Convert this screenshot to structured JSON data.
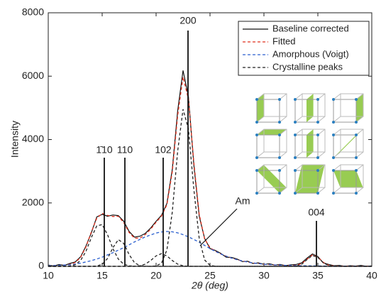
{
  "chart_data": {
    "type": "line",
    "x_label": "2θ (deg)",
    "y_label": "Intensity",
    "xlim": [
      10,
      40
    ],
    "xticks": [
      10,
      15,
      20,
      25,
      30,
      35,
      40
    ],
    "ylim": [
      0,
      8000
    ],
    "yticks": [
      0,
      2000,
      4000,
      6000,
      8000
    ],
    "legend": "upper right",
    "x": [
      10,
      10.5,
      11,
      11.5,
      12,
      12.5,
      13,
      13.5,
      14,
      14.5,
      15,
      15.5,
      16,
      16.5,
      17,
      17.5,
      18,
      18.5,
      19,
      19.5,
      20,
      20.5,
      21,
      21.5,
      22,
      22.5,
      23,
      23.5,
      24,
      24.5,
      25,
      25.5,
      26,
      26.5,
      27,
      27.5,
      28,
      28.5,
      29,
      29.5,
      30,
      30.5,
      31,
      31.5,
      32,
      32.5,
      33,
      33.5,
      34,
      34.5,
      35,
      35.5,
      36,
      36.5,
      37,
      37.5,
      38,
      38.5,
      39,
      39.5,
      40
    ],
    "series": [
      {
        "name": "Baseline corrected",
        "color": "#111111",
        "dash": false,
        "values": [
          40,
          10,
          55,
          30,
          90,
          140,
          300,
          640,
          1060,
          1560,
          1640,
          1580,
          1620,
          1600,
          1420,
          1100,
          920,
          950,
          1040,
          1210,
          1420,
          1610,
          1980,
          3050,
          4900,
          6180,
          5350,
          3200,
          1580,
          880,
          560,
          500,
          410,
          290,
          280,
          230,
          150,
          160,
          90,
          110,
          60,
          80,
          40,
          60,
          20,
          50,
          60,
          110,
          260,
          390,
          310,
          110,
          60,
          20,
          30,
          0,
          20,
          10,
          30,
          0,
          15
        ]
      },
      {
        "name": "Fitted",
        "color": "#e0301e",
        "dash": true,
        "values": [
          20,
          25,
          30,
          42,
          61,
          121,
          283,
          617,
          1089,
          1516,
          1669,
          1606,
          1574,
          1579,
          1380,
          1067,
          890,
          889,
          1001,
          1173,
          1391,
          1584,
          1942,
          2978,
          4755,
          5974,
          5270,
          3284,
          1636,
          862,
          590,
          473,
          390,
          320,
          260,
          210,
          170,
          135,
          105,
          85,
          68,
          55,
          45,
          38,
          32,
          27,
          33,
          85,
          229,
          360,
          293,
          126,
          33,
          11,
          8,
          7,
          6,
          6,
          5,
          5,
          4
        ]
      },
      {
        "name": "Amorphous (Voigt)",
        "color": "#2a5fcf",
        "dash": true,
        "values": [
          20,
          25,
          30,
          40,
          50,
          70,
          100,
          140,
          180,
          230,
          290,
          360,
          430,
          510,
          590,
          680,
          770,
          850,
          930,
          990,
          1050,
          1085,
          1100,
          1090,
          1055,
          1000,
          930,
          850,
          760,
          660,
          560,
          470,
          390,
          320,
          260,
          210,
          170,
          135,
          105,
          85,
          68,
          55,
          45,
          38,
          32,
          27,
          23,
          20,
          17,
          15,
          13,
          12,
          10,
          9,
          8,
          7,
          6,
          6,
          5,
          5,
          4
        ]
      },
      {
        "name": "Crystalline peaks",
        "color": "#222222",
        "dash": true,
        "values": [
          [
            0,
            0,
            0,
            2,
            11,
            51,
            183,
            477,
            909,
            1277,
            1317,
            998,
            555,
            227,
            68,
            15,
            2,
            0,
            0,
            0,
            0,
            0,
            0,
            0,
            0,
            0,
            0,
            0,
            0,
            0,
            0,
            0,
            0,
            0,
            0,
            0,
            0,
            0,
            0,
            0,
            0,
            0,
            0,
            0,
            0,
            0,
            0,
            0,
            0,
            0,
            0,
            0,
            0,
            0,
            0,
            0,
            0,
            0,
            0,
            0,
            0
          ],
          [
            0,
            0,
            0,
            0,
            0,
            0,
            0,
            0,
            0,
            9,
            62,
            248,
            589,
            842,
            722,
            372,
            115,
            21,
            2,
            0,
            0,
            0,
            0,
            0,
            0,
            0,
            0,
            0,
            0,
            0,
            0,
            0,
            0,
            0,
            0,
            0,
            0,
            0,
            0,
            0,
            0,
            0,
            0,
            0,
            0,
            0,
            0,
            0,
            0,
            0,
            0,
            0,
            0,
            0,
            0,
            0,
            0,
            0,
            0,
            0,
            0
          ],
          [
            0,
            0,
            0,
            0,
            0,
            0,
            0,
            0,
            0,
            0,
            0,
            0,
            0,
            0,
            0,
            0,
            3,
            18,
            69,
            183,
            329,
            400,
            329,
            183,
            69,
            18,
            3,
            0,
            0,
            0,
            0,
            0,
            0,
            0,
            0,
            0,
            0,
            0,
            0,
            0,
            0,
            0,
            0,
            0,
            0,
            0,
            0,
            0,
            0,
            0,
            0,
            0,
            0,
            0,
            0,
            0,
            0,
            0,
            0,
            0,
            0
          ],
          [
            0,
            0,
            0,
            0,
            0,
            0,
            0,
            0,
            0,
            0,
            0,
            0,
            0,
            0,
            0,
            0,
            0,
            0,
            0,
            0,
            12,
            99,
            513,
            1705,
            3631,
            4956,
            4337,
            2434,
            876,
            202,
            30,
            3,
            0,
            0,
            0,
            0,
            0,
            0,
            0,
            0,
            0,
            0,
            0,
            0,
            0,
            0,
            0,
            0,
            0,
            0,
            0,
            0,
            0,
            0,
            0,
            0,
            0,
            0,
            0,
            0,
            0
          ],
          [
            0,
            0,
            0,
            0,
            0,
            0,
            0,
            0,
            0,
            0,
            0,
            0,
            0,
            0,
            0,
            0,
            0,
            0,
            0,
            0,
            0,
            0,
            0,
            0,
            0,
            0,
            0,
            0,
            0,
            0,
            0,
            0,
            0,
            0,
            0,
            0,
            0,
            0,
            0,
            0,
            0,
            0,
            0,
            0,
            0,
            0,
            10,
            65,
            212,
            345,
            280,
            114,
            23,
            2,
            0,
            0,
            0,
            0,
            0,
            0,
            0
          ]
        ]
      }
    ],
    "annotations": [
      "1̄10",
      "110",
      "102",
      "200",
      "004",
      "Am"
    ]
  }
}
